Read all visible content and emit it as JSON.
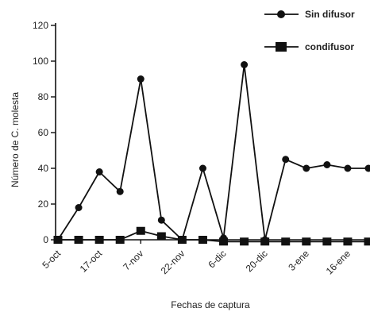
{
  "chart_data": {
    "type": "line",
    "xlabel": "Fechas de captura",
    "ylabel": "Número de C. molesta",
    "ylim": [
      0,
      120
    ],
    "yticks": [
      0,
      20,
      40,
      60,
      80,
      100,
      120
    ],
    "grid": false,
    "legend_position": "top-right",
    "x_tick_labels": [
      {
        "index": 0,
        "label": "5-oct"
      },
      {
        "index": 2,
        "label": "17-oct"
      },
      {
        "index": 4,
        "label": "7-nov"
      },
      {
        "index": 6,
        "label": "22-nov"
      },
      {
        "index": 8,
        "label": "6-dic"
      },
      {
        "index": 10,
        "label": "20-dic"
      },
      {
        "index": 12,
        "label": "3-ene"
      },
      {
        "index": 14,
        "label": "16-ene"
      }
    ],
    "point_count": 16,
    "series": [
      {
        "name": "Sin difusor",
        "marker": "circle",
        "values": [
          0,
          18,
          38,
          27,
          90,
          11,
          0,
          40,
          1,
          98,
          0,
          45,
          40,
          42,
          40,
          40
        ]
      },
      {
        "name": "condifusor",
        "marker": "square",
        "values": [
          0,
          0,
          0,
          0,
          5,
          2,
          0,
          0,
          -1,
          -1,
          -1,
          -1,
          -1,
          -1,
          -1,
          -1
        ]
      }
    ],
    "colors": {
      "line": "#111111",
      "text": "#222222"
    }
  }
}
